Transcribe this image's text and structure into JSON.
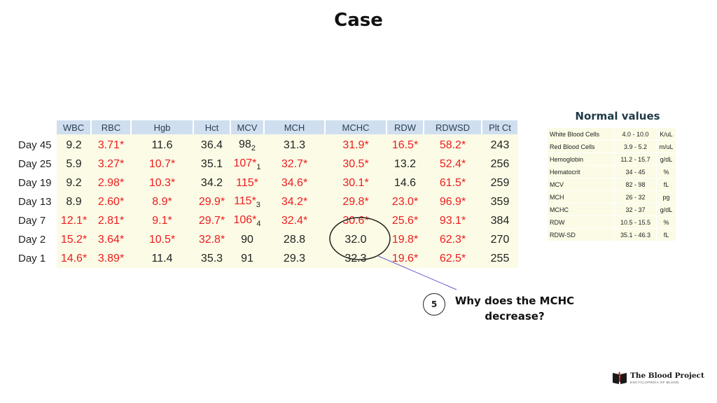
{
  "title": "Case",
  "lab_table": {
    "headers": [
      "WBC",
      "RBC",
      "Hgb",
      "Hct",
      "MCV",
      "MCH",
      "MCHC",
      "RDW",
      "RDWSD",
      "Plt Ct"
    ],
    "rows": [
      {
        "day": "Day 45",
        "cells": [
          {
            "v": "9.2",
            "abn": false
          },
          {
            "v": "3.71*",
            "abn": true
          },
          {
            "v": "11.6",
            "abn": false
          },
          {
            "v": "36.4",
            "abn": false
          },
          {
            "v": "98",
            "sub": "2",
            "abn": false
          },
          {
            "v": "31.3",
            "abn": false
          },
          {
            "v": "31.9*",
            "abn": true
          },
          {
            "v": "16.5*",
            "abn": true
          },
          {
            "v": "58.2*",
            "abn": true
          },
          {
            "v": "243",
            "abn": false
          }
        ]
      },
      {
        "day": "Day 25",
        "cells": [
          {
            "v": "5.9",
            "abn": false
          },
          {
            "v": "3.27*",
            "abn": true
          },
          {
            "v": "10.7*",
            "abn": true
          },
          {
            "v": "35.1",
            "abn": false
          },
          {
            "v": "107*",
            "sub": "1",
            "abn": true
          },
          {
            "v": "32.7*",
            "abn": true
          },
          {
            "v": "30.5*",
            "abn": true
          },
          {
            "v": "13.2",
            "abn": false
          },
          {
            "v": "52.4*",
            "abn": true
          },
          {
            "v": "256",
            "abn": false
          }
        ]
      },
      {
        "day": "Day 19",
        "cells": [
          {
            "v": "9.2",
            "abn": false
          },
          {
            "v": "2.98*",
            "abn": true
          },
          {
            "v": "10.3*",
            "abn": true
          },
          {
            "v": "34.2",
            "abn": false
          },
          {
            "v": "115*",
            "abn": true
          },
          {
            "v": "34.6*",
            "abn": true
          },
          {
            "v": "30.1*",
            "abn": true
          },
          {
            "v": "14.6",
            "abn": false
          },
          {
            "v": "61.5*",
            "abn": true
          },
          {
            "v": "259",
            "abn": false
          }
        ]
      },
      {
        "day": "Day 13",
        "cells": [
          {
            "v": "8.9",
            "abn": false
          },
          {
            "v": "2.60*",
            "abn": true
          },
          {
            "v": "8.9*",
            "abn": true
          },
          {
            "v": "29.9*",
            "abn": true
          },
          {
            "v": "115*",
            "sub": "3",
            "abn": true
          },
          {
            "v": "34.2*",
            "abn": true
          },
          {
            "v": "29.8*",
            "abn": true
          },
          {
            "v": "23.0*",
            "abn": true
          },
          {
            "v": "96.9*",
            "abn": true
          },
          {
            "v": "359",
            "abn": false
          }
        ]
      },
      {
        "day": "Day 7",
        "cells": [
          {
            "v": "12.1*",
            "abn": true
          },
          {
            "v": "2.81*",
            "abn": true
          },
          {
            "v": "9.1*",
            "abn": true
          },
          {
            "v": "29.7*",
            "abn": true
          },
          {
            "v": "106*",
            "sub": "4",
            "abn": true
          },
          {
            "v": "32.4*",
            "abn": true
          },
          {
            "v": "30.6*",
            "abn": true
          },
          {
            "v": "25.6*",
            "abn": true
          },
          {
            "v": "93.1*",
            "abn": true
          },
          {
            "v": "384",
            "abn": false
          }
        ]
      },
      {
        "day": "Day 2",
        "cells": [
          {
            "v": "15.2*",
            "abn": true
          },
          {
            "v": "3.64*",
            "abn": true
          },
          {
            "v": "10.5*",
            "abn": true
          },
          {
            "v": "32.8*",
            "abn": true
          },
          {
            "v": "90",
            "abn": false
          },
          {
            "v": "28.8",
            "abn": false
          },
          {
            "v": "32.0",
            "abn": false
          },
          {
            "v": "19.8*",
            "abn": true
          },
          {
            "v": "62.3*",
            "abn": true
          },
          {
            "v": "270",
            "abn": false
          }
        ]
      },
      {
        "day": "Day 1",
        "cells": [
          {
            "v": "14.6*",
            "abn": true
          },
          {
            "v": "3.89*",
            "abn": true
          },
          {
            "v": "11.4",
            "abn": false
          },
          {
            "v": "35.3",
            "abn": false
          },
          {
            "v": "91",
            "abn": false
          },
          {
            "v": "29.3",
            "abn": false
          },
          {
            "v": "32.3",
            "abn": false
          },
          {
            "v": "19.6*",
            "abn": true
          },
          {
            "v": "62.5*",
            "abn": true
          },
          {
            "v": "255",
            "abn": false
          }
        ]
      }
    ]
  },
  "normal_values": {
    "title": "Normal values",
    "rows": [
      {
        "name": "White Blood Cells",
        "range": "4.0 - 10.0",
        "unit": "K/uL"
      },
      {
        "name": "Red Blood Cells",
        "range": "3.9 - 5.2",
        "unit": "m/uL"
      },
      {
        "name": "Hemoglobin",
        "range": "11.2 - 15.7",
        "unit": "g/dL"
      },
      {
        "name": "Hematocrit",
        "range": "34 - 45",
        "unit": "%"
      },
      {
        "name": "MCV",
        "range": "82 - 98",
        "unit": "fL"
      },
      {
        "name": "MCH",
        "range": "26 - 32",
        "unit": "pg"
      },
      {
        "name": "MCHC",
        "range": "32 - 37",
        "unit": "g/dL"
      },
      {
        "name": "RDW",
        "range": "10.5 - 15.5",
        "unit": "%"
      },
      {
        "name": "RDW-SD",
        "range": "35.1 - 46.3",
        "unit": "fL"
      }
    ]
  },
  "annotation": {
    "number": "5",
    "question_line1": "Why does the MCHC",
    "question_line2": "decrease?"
  },
  "logo": {
    "name": "The Blood Project",
    "tagline": "ENCYCLOPEDIA OF BLOOD"
  },
  "colors": {
    "abnormal": "#ee1c1c",
    "header_bg": "#cfdff0",
    "cell_bg": "#fbfbe6"
  }
}
